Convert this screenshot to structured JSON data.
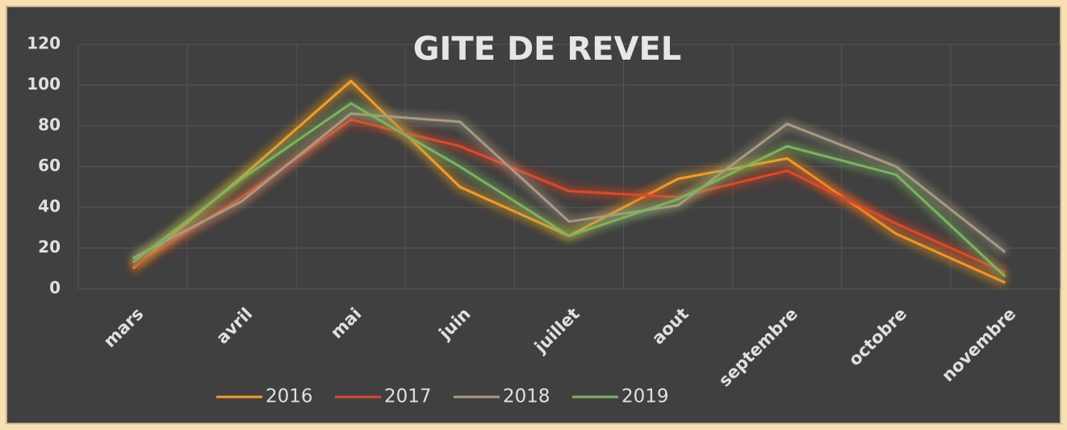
{
  "chart_data": {
    "type": "line",
    "title": "GITE DE REVEL",
    "categories": [
      "mars",
      "avril",
      "mai",
      "juin",
      "juillet",
      "aout",
      "septembre",
      "octobre",
      "novembre"
    ],
    "series": [
      {
        "name": "2016",
        "color": "#f59d25",
        "values": [
          10,
          55,
          102,
          50,
          26,
          54,
          64,
          27,
          3
        ]
      },
      {
        "name": "2017",
        "color": "#e0472a",
        "values": [
          11,
          45,
          83,
          70,
          48,
          45,
          58,
          32,
          8
        ]
      },
      {
        "name": "2018",
        "color": "#a89a82",
        "values": [
          15,
          43,
          86,
          82,
          33,
          41,
          81,
          60,
          18
        ]
      },
      {
        "name": "2019",
        "color": "#7cb35f",
        "values": [
          13,
          54,
          91,
          60,
          26,
          44,
          70,
          56,
          6
        ]
      }
    ],
    "ylim": [
      0,
      120
    ],
    "yticks": [
      0,
      20,
      40,
      60,
      80,
      100,
      120
    ],
    "grid": true,
    "legend": "bottom"
  }
}
